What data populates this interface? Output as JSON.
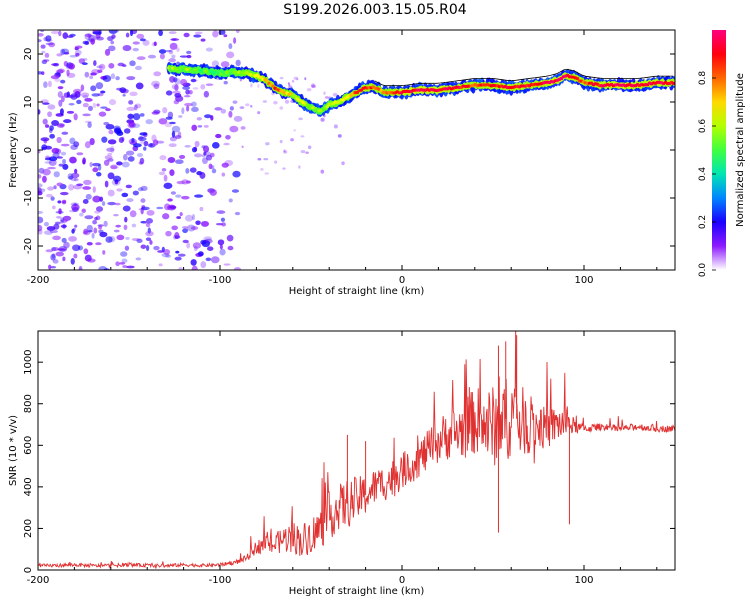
{
  "title": "S199.2026.003.15.05.R04",
  "chart_data": [
    {
      "type": "heatmap",
      "xlabel": "Height of straight line (km)",
      "ylabel": "Frequency (Hz)",
      "xlim": [
        -200,
        150
      ],
      "ylim": [
        -25,
        25
      ],
      "xticks": [
        -200,
        -100,
        0,
        100
      ],
      "yticks": [
        -20,
        -10,
        0,
        10,
        20
      ],
      "colorbar": {
        "label": "Normalized spectral amplitude",
        "range": [
          0,
          1
        ],
        "ticks": [
          0,
          0.2,
          0.4,
          0.6,
          0.8
        ],
        "tick_labels": [
          "0.0",
          "0.2",
          "0.4",
          "0.6",
          "0.8"
        ],
        "colormap": [
          "#ffffff",
          "#8000ff",
          "#0000ff",
          "#00c0ff",
          "#00ff80",
          "#80ff00",
          "#ffff00",
          "#ff8000",
          "#ff0000",
          "#ff0080"
        ]
      },
      "ridge": {
        "x": [
          -128,
          -110,
          -100,
          -90,
          -85,
          -80,
          -75,
          -70,
          -65,
          -60,
          -55,
          -50,
          -45,
          -40,
          -35,
          -30,
          -25,
          -20,
          -15,
          -10,
          0,
          10,
          20,
          30,
          40,
          50,
          60,
          70,
          80,
          85,
          90,
          95,
          100,
          110,
          120,
          130,
          140,
          150
        ],
        "freq_hz": [
          17,
          16.5,
          16,
          16.2,
          16,
          15.5,
          14.5,
          13,
          12,
          11.5,
          10,
          9,
          8,
          9.5,
          10,
          11,
          12,
          13,
          13,
          12,
          12,
          12.5,
          12.5,
          13,
          13.5,
          13.5,
          13,
          13.5,
          14,
          14.5,
          15.5,
          15,
          14,
          13.5,
          13.5,
          13.5,
          14,
          14
        ],
        "amplitude": [
          0.55,
          0.5,
          0.45,
          0.55,
          0.6,
          0.65,
          0.7,
          0.8,
          0.75,
          0.6,
          0.65,
          0.55,
          0.5,
          0.55,
          0.6,
          0.7,
          0.8,
          0.85,
          0.8,
          0.7,
          0.9,
          0.95,
          0.9,
          0.9,
          0.8,
          0.85,
          0.9,
          0.85,
          0.9,
          0.95,
          0.9,
          0.85,
          0.8,
          0.9,
          0.95,
          0.9,
          0.9,
          0.85
        ]
      },
      "noise_region_x": [
        -200,
        -90
      ]
    },
    {
      "type": "line",
      "xlabel": "Height of straight line (km)",
      "ylabel": "SNR (10 * v/v)",
      "xlim": [
        -200,
        150
      ],
      "ylim": [
        0,
        1150
      ],
      "xticks": [
        -200,
        -100,
        0,
        100
      ],
      "yticks": [
        0,
        200,
        400,
        600,
        800,
        1000
      ],
      "series": [
        {
          "name": "SNR",
          "color": "#e03030",
          "x": [
            -200,
            -190,
            -180,
            -170,
            -160,
            -150,
            -140,
            -130,
            -120,
            -110,
            -100,
            -90,
            -85,
            -80,
            -75,
            -70,
            -65,
            -60,
            -55,
            -50,
            -45,
            -40,
            -35,
            -30,
            -25,
            -20,
            -15,
            -10,
            -5,
            0,
            5,
            10,
            15,
            20,
            25,
            30,
            35,
            40,
            45,
            50,
            55,
            60,
            65,
            70,
            75,
            80,
            85,
            90,
            95,
            100,
            110,
            120,
            130,
            140,
            150
          ],
          "y": [
            20,
            22,
            25,
            20,
            22,
            25,
            22,
            20,
            25,
            22,
            25,
            40,
            60,
            110,
            130,
            120,
            150,
            160,
            140,
            170,
            200,
            260,
            300,
            320,
            340,
            360,
            400,
            420,
            440,
            480,
            500,
            540,
            580,
            620,
            650,
            660,
            680,
            720,
            700,
            690,
            720,
            740,
            720,
            700,
            690,
            680,
            700,
            710,
            690,
            680,
            690,
            680,
            690,
            680,
            680
          ],
          "noise_amp": [
            15,
            15,
            15,
            15,
            15,
            15,
            15,
            15,
            15,
            15,
            15,
            20,
            30,
            60,
            80,
            90,
            120,
            140,
            150,
            160,
            180,
            220,
            200,
            220,
            200,
            180,
            160,
            160,
            180,
            160,
            150,
            170,
            180,
            200,
            220,
            240,
            260,
            300,
            320,
            360,
            380,
            360,
            320,
            260,
            200,
            180,
            160,
            150,
            60,
            40,
            30,
            30,
            30,
            30,
            30
          ],
          "spikes": [
            {
              "x": -30,
              "y": 650
            },
            {
              "x": -20,
              "y": 620
            },
            {
              "x": 53,
              "y": 1080
            },
            {
              "x": 63,
              "y": 1130
            },
            {
              "x": 53,
              "y": 180
            },
            {
              "x": 92,
              "y": 220
            },
            {
              "x": 37,
              "y": 880
            },
            {
              "x": 57,
              "y": 1100
            }
          ]
        }
      ]
    }
  ]
}
